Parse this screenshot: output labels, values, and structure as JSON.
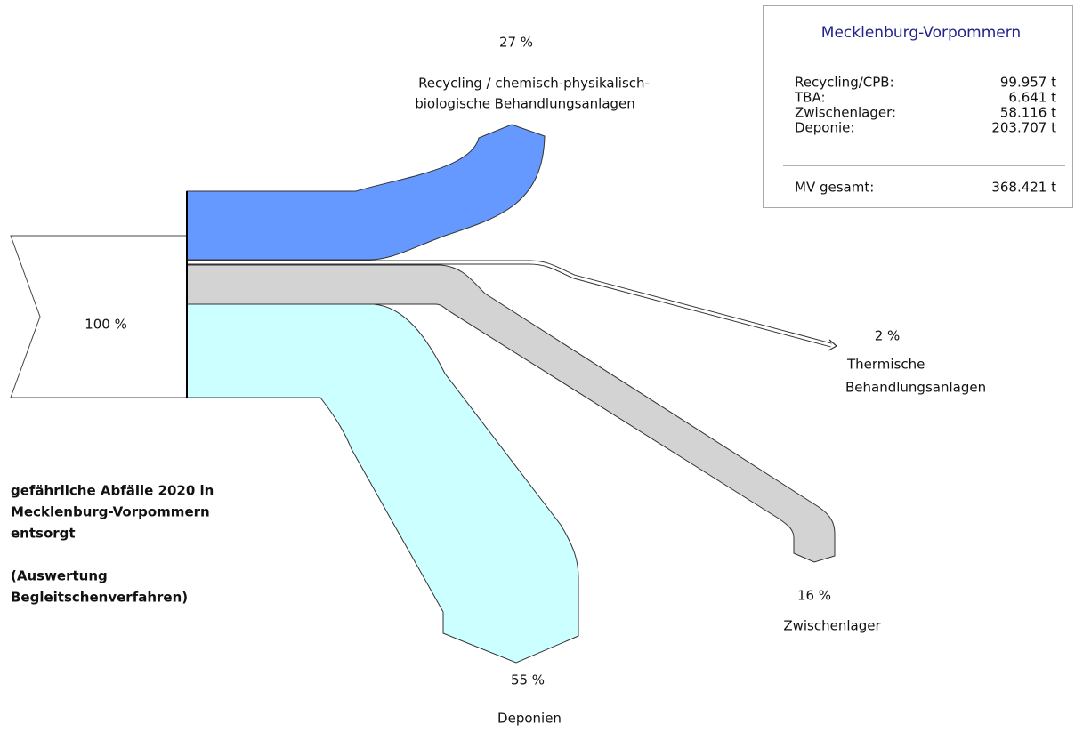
{
  "source": {
    "percent": "100 %"
  },
  "flows": [
    {
      "percent": "27 %",
      "label": [
        "Recycling / chemisch-physikalisch-",
        "biologische Behandlungsanlagen"
      ]
    },
    {
      "percent": "2 %",
      "label": [
        "Thermische",
        "Behandlungsanlagen"
      ]
    },
    {
      "percent": "16 %",
      "label": [
        "Zwischenlager"
      ]
    },
    {
      "percent": "55 %",
      "label": [
        "Deponien"
      ]
    }
  ],
  "caption": [
    "gefährliche Abfälle 2020 in",
    "Mecklenburg-Vorpommern",
    "entsorgt",
    "(Auswertung",
    "Begleitschenverfahren)"
  ],
  "summary": {
    "title": "Mecklenburg-Vorpommern",
    "rows": [
      [
        "Recycling/CPB:",
        "99.957 t"
      ],
      [
        "TBA:",
        "6.641 t"
      ],
      [
        "Zwischenlager:",
        "58.116 t"
      ],
      [
        "Deponie:",
        "203.707 t"
      ]
    ],
    "total": [
      "MV gesamt:",
      "368.421 t"
    ]
  }
}
